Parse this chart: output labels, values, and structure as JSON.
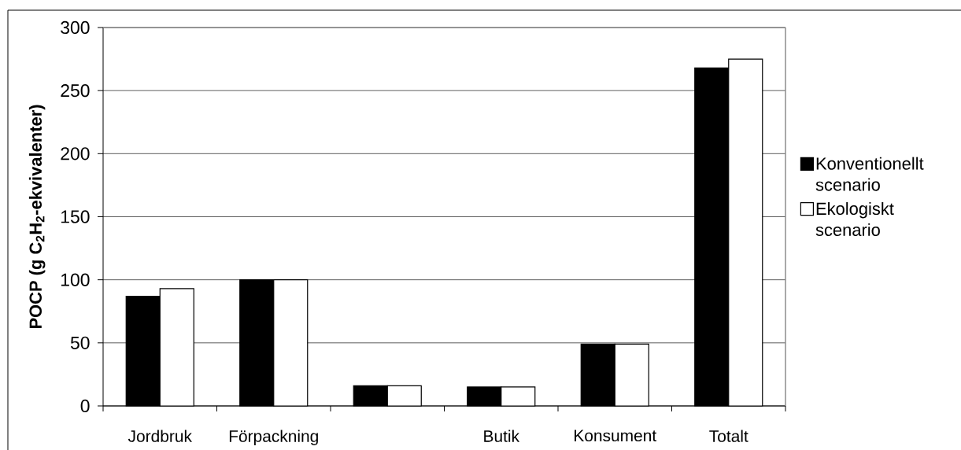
{
  "chart_data": {
    "type": "bar",
    "ylabel": "POCP (g C$_{2}$H$_{2}$-ekvivalenter)",
    "categories": [
      "Jordbruk",
      "Förpackning",
      null,
      "Butik",
      "Konsument",
      "Totalt"
    ],
    "series": [
      {
        "name": "Konventionellt scenario",
        "color": "#000000",
        "values": [
          87,
          100,
          16,
          15,
          49,
          268
        ]
      },
      {
        "name": "Ekologiskt scenario",
        "color": "#ffffff",
        "values": [
          93,
          100,
          16,
          15,
          49,
          275
        ]
      }
    ],
    "ylim": [
      0,
      300
    ],
    "yticks": [
      0,
      50,
      100,
      150,
      200,
      250,
      300
    ],
    "grid": "y",
    "legend": "right"
  }
}
